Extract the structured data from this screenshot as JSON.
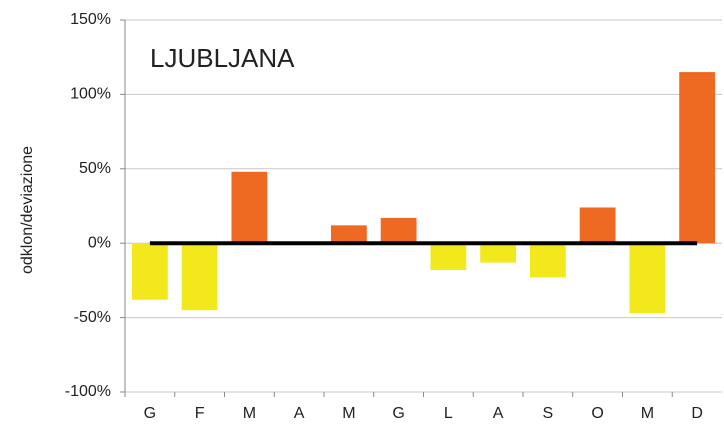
{
  "chart_data": {
    "type": "bar",
    "title": "LJUBLJANA",
    "y_label": "odklon/deviazione",
    "categories": [
      "G",
      "F",
      "M",
      "A",
      "M",
      "G",
      "L",
      "A",
      "S",
      "O",
      "M",
      "D"
    ],
    "values": [
      -38,
      -45,
      48,
      0,
      12,
      17,
      -18,
      -13,
      -23,
      24,
      -47,
      115
    ],
    "colors": [
      "#f2e81c",
      "#f2e81c",
      "#ee6a22",
      "#ee6a22",
      "#ee6a22",
      "#ee6a22",
      "#f2e81c",
      "#f2e81c",
      "#f2e81c",
      "#ee6a22",
      "#f2e81c",
      "#ee6a22"
    ],
    "ylim": [
      -100,
      150
    ],
    "yticks": [
      {
        "value": -100,
        "label": "-100%"
      },
      {
        "value": -50,
        "label": "-50%"
      },
      {
        "value": 0,
        "label": "0%"
      },
      {
        "value": 50,
        "label": "50%"
      },
      {
        "value": 100,
        "label": "100%"
      },
      {
        "value": 150,
        "label": "150%"
      }
    ],
    "grid": true
  }
}
